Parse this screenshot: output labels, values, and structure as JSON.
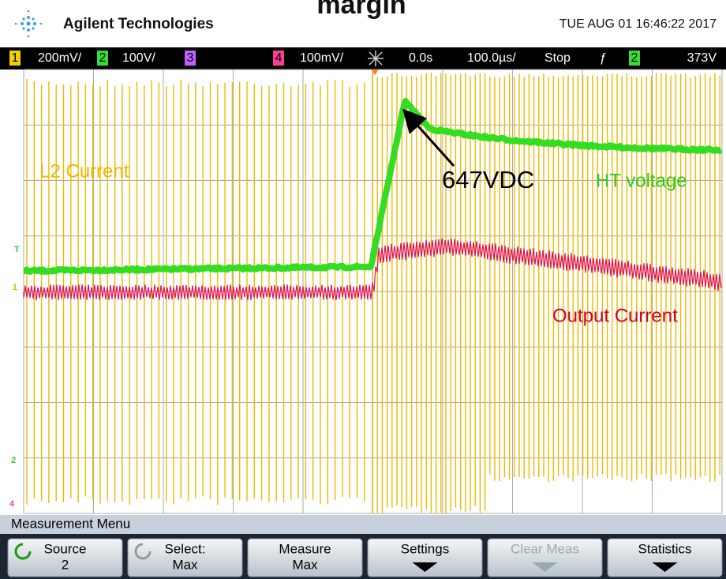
{
  "header": {
    "brand": "Agilent Technologies",
    "title": "margin",
    "datetime": "TUE AUG 01 16:46:22 2017"
  },
  "status_bar": {
    "channels": [
      {
        "number": "1",
        "scale": "200mV/"
      },
      {
        "number": "2",
        "scale": "100V/"
      },
      {
        "number": "3"
      },
      {
        "number": "4",
        "scale": "100mV/"
      }
    ],
    "delay": "0.0s",
    "timebase": "100.0µs/",
    "run_state": "Stop",
    "trigger_slope": "ƒ",
    "trigger_channel": "2",
    "trigger_level": "373V"
  },
  "display": {
    "annotations": [
      "L2 Current",
      "647VDC",
      "HT voltage",
      "Output Current"
    ],
    "markers": [
      "T",
      "1",
      "2",
      "4"
    ]
  },
  "menu": {
    "title": "Measurement Menu",
    "softkeys": [
      {
        "label": "Source",
        "value": "2"
      },
      {
        "label": "Select:",
        "value": "Max"
      },
      {
        "label": "Measure",
        "value": "Max"
      },
      {
        "label": "Settings"
      },
      {
        "label": "Clear Meas"
      },
      {
        "label": "Statistics"
      }
    ]
  }
}
